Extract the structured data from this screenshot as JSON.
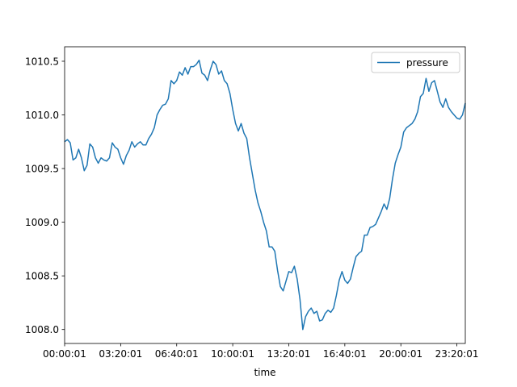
{
  "chart_data": {
    "type": "line",
    "x_label": "time",
    "x": [
      "00:00:01",
      "00:10:01",
      "00:20:01",
      "00:30:01",
      "00:40:01",
      "00:50:01",
      "01:00:01",
      "01:10:01",
      "01:20:01",
      "01:30:01",
      "01:40:01",
      "01:50:01",
      "02:00:01",
      "02:10:01",
      "02:20:01",
      "02:30:01",
      "02:40:01",
      "02:50:01",
      "03:00:01",
      "03:10:01",
      "03:20:01",
      "03:30:01",
      "03:40:01",
      "03:50:01",
      "04:00:01",
      "04:10:01",
      "04:20:01",
      "04:30:01",
      "04:40:01",
      "04:50:01",
      "05:00:01",
      "05:10:01",
      "05:20:01",
      "05:30:01",
      "05:40:01",
      "05:50:01",
      "06:00:01",
      "06:10:01",
      "06:20:01",
      "06:30:01",
      "06:40:01",
      "06:50:01",
      "07:00:01",
      "07:10:01",
      "07:20:01",
      "07:30:01",
      "07:40:01",
      "07:50:01",
      "08:00:01",
      "08:10:01",
      "08:20:01",
      "08:30:01",
      "08:40:01",
      "08:50:01",
      "09:00:01",
      "09:10:01",
      "09:20:01",
      "09:30:01",
      "09:40:01",
      "09:50:01",
      "10:00:01",
      "10:10:01",
      "10:20:01",
      "10:30:01",
      "10:40:01",
      "10:50:01",
      "11:00:01",
      "11:10:01",
      "11:20:01",
      "11:30:01",
      "11:40:01",
      "11:50:01",
      "12:00:01",
      "12:10:01",
      "12:20:01",
      "12:30:01",
      "12:40:01",
      "12:50:01",
      "13:00:01",
      "13:10:01",
      "13:20:01",
      "13:30:01",
      "13:40:01",
      "13:50:01",
      "14:00:01",
      "14:10:01",
      "14:20:01",
      "14:30:01",
      "14:40:01",
      "14:50:01",
      "15:00:01",
      "15:10:01",
      "15:20:01",
      "15:30:01",
      "15:40:01",
      "15:50:01",
      "16:00:01",
      "16:10:01",
      "16:20:01",
      "16:30:01",
      "16:40:01",
      "16:50:01",
      "17:00:01",
      "17:10:01",
      "17:20:01",
      "17:30:01",
      "17:40:01",
      "17:50:01",
      "18:00:01",
      "18:10:01",
      "18:20:01",
      "18:30:01",
      "18:40:01",
      "18:50:01",
      "19:00:01",
      "19:10:01",
      "19:20:01",
      "19:30:01",
      "19:40:01",
      "19:50:01",
      "20:00:01",
      "20:10:01",
      "20:20:01",
      "20:30:01",
      "20:40:01",
      "20:50:01",
      "21:00:01",
      "21:10:01",
      "21:20:01",
      "21:30:01",
      "21:40:01",
      "21:50:01",
      "22:00:01",
      "22:10:01",
      "22:20:01",
      "22:30:01",
      "22:40:01",
      "22:50:01",
      "23:00:01",
      "23:10:01",
      "23:20:01",
      "23:30:01",
      "23:40:01",
      "23:50:01"
    ],
    "series": [
      {
        "name": "pressure",
        "color": "#1f77b4",
        "values": [
          1009.75,
          1009.77,
          1009.74,
          1009.58,
          1009.6,
          1009.68,
          1009.6,
          1009.48,
          1009.53,
          1009.73,
          1009.7,
          1009.6,
          1009.55,
          1009.6,
          1009.58,
          1009.57,
          1009.6,
          1009.74,
          1009.7,
          1009.68,
          1009.6,
          1009.54,
          1009.62,
          1009.67,
          1009.75,
          1009.7,
          1009.73,
          1009.75,
          1009.72,
          1009.72,
          1009.78,
          1009.82,
          1009.88,
          1010.0,
          1010.05,
          1010.09,
          1010.1,
          1010.15,
          1010.32,
          1010.29,
          1010.32,
          1010.4,
          1010.37,
          1010.44,
          1010.38,
          1010.45,
          1010.45,
          1010.47,
          1010.51,
          1010.39,
          1010.37,
          1010.32,
          1010.42,
          1010.5,
          1010.47,
          1010.38,
          1010.41,
          1010.32,
          1010.29,
          1010.2,
          1010.05,
          1009.92,
          1009.85,
          1009.92,
          1009.83,
          1009.78,
          1009.6,
          1009.45,
          1009.3,
          1009.18,
          1009.1,
          1009.0,
          1008.92,
          1008.77,
          1008.77,
          1008.73,
          1008.55,
          1008.4,
          1008.36,
          1008.45,
          1008.54,
          1008.53,
          1008.59,
          1008.47,
          1008.28,
          1008.0,
          1008.12,
          1008.17,
          1008.2,
          1008.15,
          1008.17,
          1008.08,
          1008.09,
          1008.15,
          1008.18,
          1008.16,
          1008.2,
          1008.32,
          1008.46,
          1008.54,
          1008.46,
          1008.43,
          1008.47,
          1008.58,
          1008.68,
          1008.71,
          1008.73,
          1008.88,
          1008.88,
          1008.95,
          1008.96,
          1008.98,
          1009.04,
          1009.1,
          1009.17,
          1009.12,
          1009.22,
          1009.4,
          1009.55,
          1009.63,
          1009.7,
          1009.84,
          1009.88,
          1009.9,
          1009.92,
          1009.96,
          1010.03,
          1010.17,
          1010.2,
          1010.34,
          1010.22,
          1010.3,
          1010.32,
          1010.22,
          1010.12,
          1010.07,
          1010.15,
          1010.07,
          1010.03,
          1010.0,
          1009.97,
          1009.96,
          1010.0,
          1010.11
        ]
      }
    ],
    "xlim": [
      "00:00:01",
      "23:50:01"
    ],
    "xticks": [
      "00:00:01",
      "03:20:01",
      "06:40:01",
      "10:00:01",
      "13:20:01",
      "16:40:01",
      "20:00:01",
      "23:20:01"
    ],
    "ylim": [
      1007.87,
      1010.635
    ],
    "yticks": [
      {
        "value": 1008,
        "label": "1008.0"
      },
      1008.5,
      {
        "value": 1009,
        "label": "1009.0"
      },
      1009.5,
      {
        "value": 1010,
        "label": "1010.0"
      },
      1010.5
    ],
    "legend": "upper right",
    "grid": false
  }
}
